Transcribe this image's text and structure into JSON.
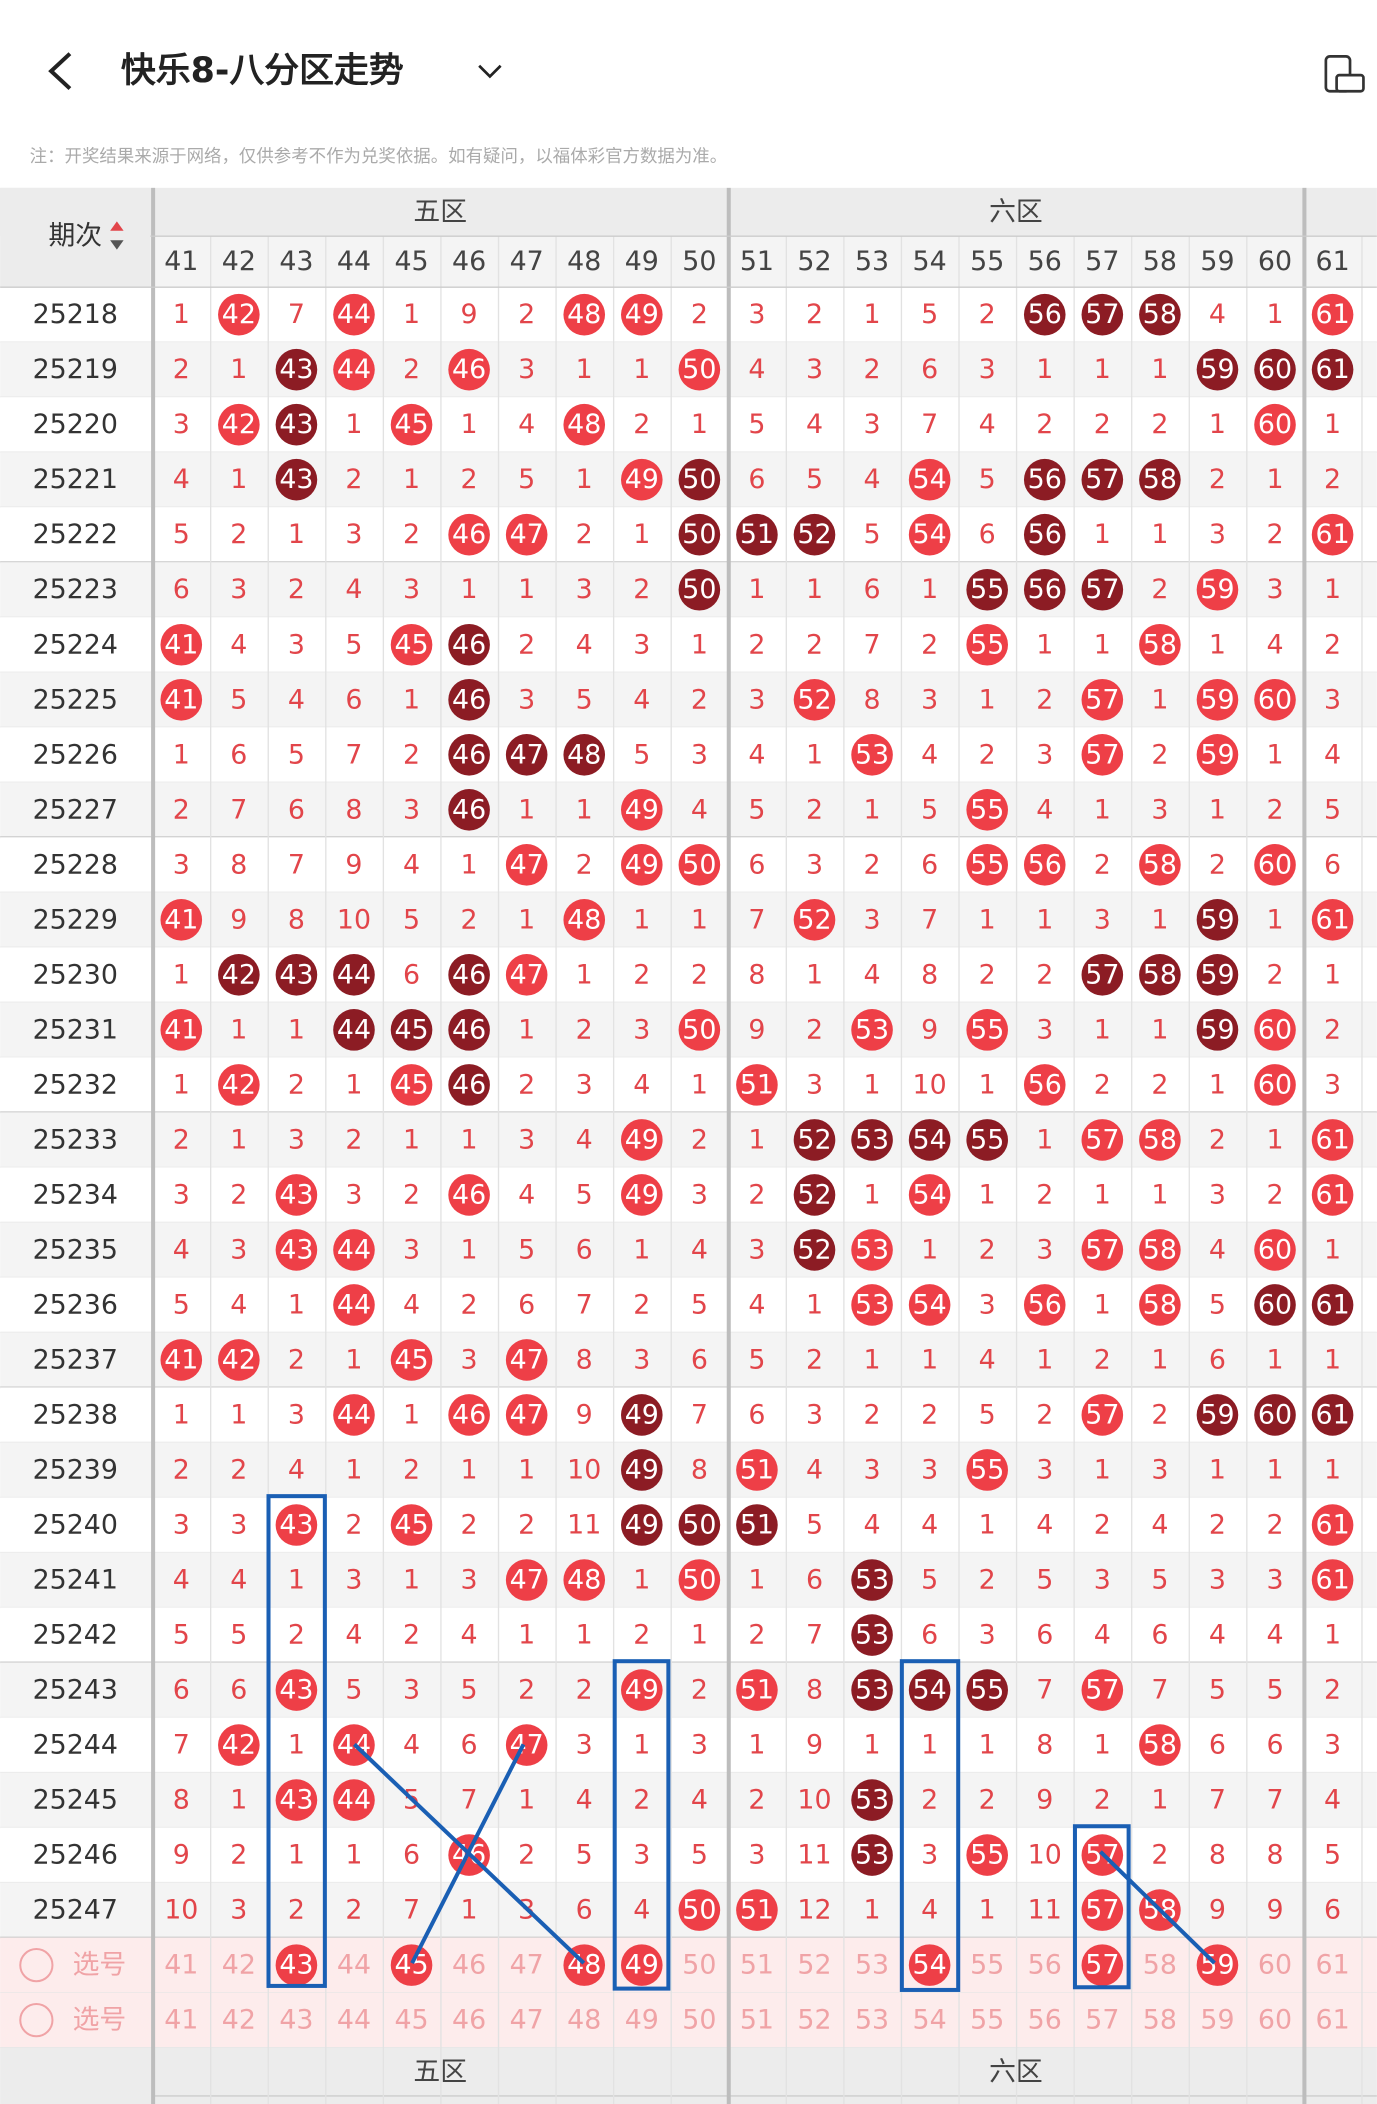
{
  "header": {
    "title": "快乐8-八分区走势",
    "note": "注：开奖结果来源于网络，仅供参考不作为兑奖依据。如有疑问，以福体彩官方数据为准。"
  },
  "table": {
    "period_label": "期次",
    "zones": [
      "五区",
      "六区"
    ],
    "columns": [
      41,
      42,
      43,
      44,
      45,
      46,
      47,
      48,
      49,
      50,
      51,
      52,
      53,
      54,
      55,
      56,
      57,
      58,
      59,
      60,
      61
    ],
    "rows": [
      {
        "period": "25218",
        "cells": [
          1,
          42,
          7,
          44,
          1,
          9,
          2,
          48,
          49,
          2,
          3,
          2,
          1,
          5,
          2,
          56,
          57,
          58,
          4,
          1,
          61
        ],
        "marks": ".o.o...oo......ddd..o"
      },
      {
        "period": "25219",
        "cells": [
          2,
          1,
          43,
          44,
          2,
          46,
          3,
          1,
          1,
          50,
          4,
          3,
          2,
          6,
          3,
          1,
          1,
          1,
          59,
          60,
          61
        ],
        "marks": "..do.o...o........ddd"
      },
      {
        "period": "25220",
        "cells": [
          3,
          42,
          43,
          1,
          45,
          1,
          4,
          48,
          2,
          1,
          5,
          4,
          3,
          7,
          4,
          2,
          2,
          2,
          1,
          60,
          1
        ],
        "marks": ".od.o..o...........o."
      },
      {
        "period": "25221",
        "cells": [
          4,
          1,
          43,
          2,
          1,
          2,
          5,
          1,
          49,
          50,
          6,
          5,
          4,
          54,
          5,
          56,
          57,
          58,
          2,
          1,
          2
        ],
        "marks": "..d.....od...o.ddd..."
      },
      {
        "period": "25222",
        "cells": [
          5,
          2,
          1,
          3,
          2,
          46,
          47,
          2,
          1,
          50,
          51,
          52,
          5,
          54,
          6,
          56,
          1,
          1,
          3,
          2,
          61
        ],
        "marks": ".....oo..ddd.o.d....o"
      },
      {
        "period": "25223",
        "cells": [
          6,
          3,
          2,
          4,
          3,
          1,
          1,
          3,
          2,
          50,
          1,
          1,
          6,
          1,
          55,
          56,
          57,
          2,
          59,
          3,
          1
        ],
        "marks": ".........d....ddd.o.."
      },
      {
        "period": "25224",
        "cells": [
          41,
          4,
          3,
          5,
          45,
          46,
          2,
          4,
          3,
          1,
          2,
          2,
          7,
          2,
          55,
          1,
          1,
          58,
          1,
          4,
          2
        ],
        "marks": "o...od........o..o..."
      },
      {
        "period": "25225",
        "cells": [
          41,
          5,
          4,
          6,
          1,
          46,
          3,
          5,
          4,
          2,
          3,
          52,
          8,
          3,
          1,
          2,
          57,
          1,
          59,
          60,
          3
        ],
        "marks": "o....d.....o....o.oo."
      },
      {
        "period": "25226",
        "cells": [
          1,
          6,
          5,
          7,
          2,
          46,
          47,
          48,
          5,
          3,
          4,
          1,
          53,
          4,
          2,
          3,
          57,
          2,
          59,
          1,
          4
        ],
        "marks": ".....ddd....o...o.o.."
      },
      {
        "period": "25227",
        "cells": [
          2,
          7,
          6,
          8,
          3,
          46,
          1,
          1,
          49,
          4,
          5,
          2,
          1,
          5,
          55,
          4,
          1,
          3,
          1,
          2,
          5
        ],
        "marks": ".....d..o.....o......"
      },
      {
        "period": "25228",
        "cells": [
          3,
          8,
          7,
          9,
          4,
          1,
          47,
          2,
          49,
          50,
          6,
          3,
          2,
          6,
          55,
          56,
          2,
          58,
          2,
          60,
          6
        ],
        "marks": "......o.oo....oo.o.o."
      },
      {
        "period": "25229",
        "cells": [
          41,
          9,
          8,
          10,
          5,
          2,
          1,
          48,
          1,
          1,
          7,
          52,
          3,
          7,
          1,
          1,
          3,
          1,
          59,
          1,
          61
        ],
        "marks": "o......o...o......d.o"
      },
      {
        "period": "25230",
        "cells": [
          1,
          42,
          43,
          44,
          6,
          46,
          47,
          1,
          2,
          2,
          8,
          1,
          4,
          8,
          2,
          2,
          57,
          58,
          59,
          2,
          1
        ],
        "marks": ".ddd.do.........ddd.."
      },
      {
        "period": "25231",
        "cells": [
          41,
          1,
          1,
          44,
          45,
          46,
          1,
          2,
          3,
          50,
          9,
          2,
          53,
          9,
          55,
          3,
          1,
          1,
          59,
          60,
          2
        ],
        "marks": "o..ddd...o..o.o...do."
      },
      {
        "period": "25232",
        "cells": [
          1,
          42,
          2,
          1,
          45,
          46,
          2,
          3,
          4,
          1,
          51,
          3,
          1,
          10,
          1,
          56,
          2,
          2,
          1,
          60,
          3
        ],
        "marks": ".o..od....o....o...o."
      },
      {
        "period": "25233",
        "cells": [
          2,
          1,
          3,
          2,
          1,
          1,
          3,
          4,
          49,
          2,
          1,
          52,
          53,
          54,
          55,
          1,
          57,
          58,
          2,
          1,
          61
        ],
        "marks": "........o..dddd.oo..o"
      },
      {
        "period": "25234",
        "cells": [
          3,
          2,
          43,
          3,
          2,
          46,
          4,
          5,
          49,
          3,
          2,
          52,
          1,
          54,
          1,
          2,
          1,
          1,
          3,
          2,
          61
        ],
        "marks": "..o..o..o..d.o......o"
      },
      {
        "period": "25235",
        "cells": [
          4,
          3,
          43,
          44,
          3,
          1,
          5,
          6,
          1,
          4,
          3,
          52,
          53,
          1,
          2,
          3,
          57,
          58,
          4,
          60,
          1
        ],
        "marks": "..oo.......do...oo.o."
      },
      {
        "period": "25236",
        "cells": [
          5,
          4,
          1,
          44,
          4,
          2,
          6,
          7,
          2,
          5,
          4,
          1,
          53,
          54,
          3,
          56,
          1,
          58,
          5,
          60,
          61
        ],
        "marks": "...o........oo.o.o.dd"
      },
      {
        "period": "25237",
        "cells": [
          41,
          42,
          2,
          1,
          45,
          3,
          47,
          8,
          3,
          6,
          5,
          2,
          1,
          1,
          4,
          1,
          2,
          1,
          6,
          1,
          1
        ],
        "marks": "oo..o.o.............."
      },
      {
        "period": "25238",
        "cells": [
          1,
          1,
          3,
          44,
          1,
          46,
          47,
          9,
          49,
          7,
          6,
          3,
          2,
          2,
          5,
          2,
          57,
          2,
          59,
          60,
          61
        ],
        "marks": "...o.oo.d.......o.ddd"
      },
      {
        "period": "25239",
        "cells": [
          2,
          2,
          4,
          1,
          2,
          1,
          1,
          10,
          49,
          8,
          51,
          4,
          3,
          3,
          55,
          3,
          1,
          3,
          1,
          1,
          1
        ],
        "marks": "........d.o...o......"
      },
      {
        "period": "25240",
        "cells": [
          3,
          3,
          43,
          2,
          45,
          2,
          2,
          11,
          49,
          50,
          51,
          5,
          4,
          4,
          1,
          4,
          2,
          4,
          2,
          2,
          61
        ],
        "marks": "..o.o...ddd.........o"
      },
      {
        "period": "25241",
        "cells": [
          4,
          4,
          1,
          3,
          1,
          3,
          47,
          48,
          1,
          50,
          1,
          6,
          53,
          5,
          2,
          5,
          3,
          5,
          3,
          3,
          61
        ],
        "marks": "......oo.o..d.......o"
      },
      {
        "period": "25242",
        "cells": [
          5,
          5,
          2,
          4,
          2,
          4,
          1,
          1,
          2,
          1,
          2,
          7,
          53,
          6,
          3,
          6,
          4,
          6,
          4,
          4,
          1
        ],
        "marks": "............d........"
      },
      {
        "period": "25243",
        "cells": [
          6,
          6,
          43,
          5,
          3,
          5,
          2,
          2,
          49,
          2,
          51,
          8,
          53,
          54,
          55,
          7,
          57,
          7,
          5,
          5,
          2
        ],
        "marks": "..o.....o.o.ddd.o...."
      },
      {
        "period": "25244",
        "cells": [
          7,
          42,
          1,
          44,
          4,
          6,
          47,
          3,
          1,
          3,
          1,
          9,
          1,
          1,
          1,
          8,
          1,
          58,
          6,
          6,
          3
        ],
        "marks": ".o.o..o..........o..."
      },
      {
        "period": "25245",
        "cells": [
          8,
          1,
          43,
          44,
          5,
          7,
          1,
          4,
          2,
          4,
          2,
          10,
          53,
          2,
          2,
          9,
          2,
          1,
          7,
          7,
          4
        ],
        "marks": "..oo........d........"
      },
      {
        "period": "25246",
        "cells": [
          9,
          2,
          1,
          1,
          6,
          46,
          2,
          5,
          3,
          5,
          3,
          11,
          53,
          3,
          55,
          10,
          57,
          2,
          8,
          8,
          5
        ],
        "marks": ".....o......d.o.o...."
      },
      {
        "period": "25247",
        "cells": [
          10,
          3,
          2,
          2,
          7,
          1,
          3,
          6,
          4,
          50,
          51,
          12,
          1,
          4,
          1,
          11,
          57,
          58,
          9,
          9,
          6
        ],
        "marks": ".........oo.....oo..."
      }
    ],
    "pick_rows": [
      {
        "label": "选号",
        "cells": [
          41,
          42,
          43,
          44,
          45,
          46,
          47,
          48,
          49,
          50,
          51,
          52,
          53,
          54,
          55,
          56,
          57,
          58,
          59,
          60,
          61
        ],
        "marks": "..o.o..oo....o..o.o.."
      },
      {
        "label": "选号",
        "cells": [
          41,
          42,
          43,
          44,
          45,
          46,
          47,
          48,
          49,
          50,
          51,
          52,
          53,
          54,
          55,
          56,
          57,
          58,
          59,
          60,
          61
        ],
        "marks": "....................."
      }
    ],
    "footer_zones": [
      "五区",
      "六区"
    ]
  }
}
